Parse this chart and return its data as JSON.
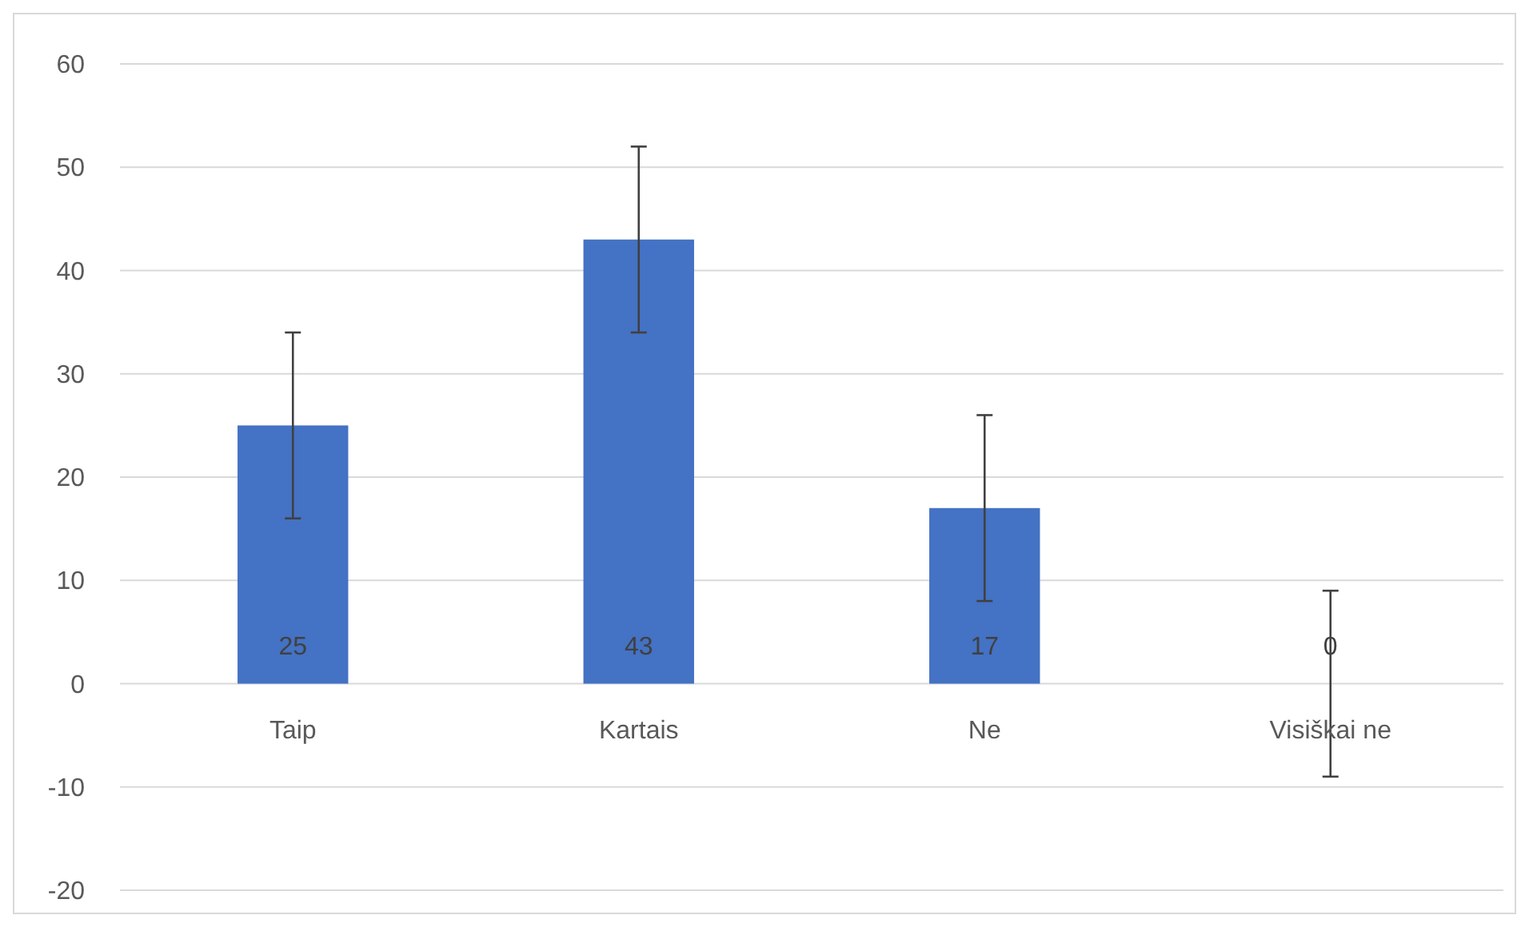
{
  "chart_data": {
    "type": "bar",
    "categories": [
      "Taip",
      "Kartais",
      "Ne",
      "Visiškai ne"
    ],
    "values": [
      25,
      43,
      17,
      0
    ],
    "errors": [
      9,
      9,
      9,
      9
    ],
    "color": "#4472c4",
    "data_labels": true,
    "ylim": [
      -20,
      60
    ],
    "yticks": [
      -20,
      -10,
      0,
      10,
      20,
      30,
      40,
      50,
      60
    ],
    "grid": "y"
  }
}
